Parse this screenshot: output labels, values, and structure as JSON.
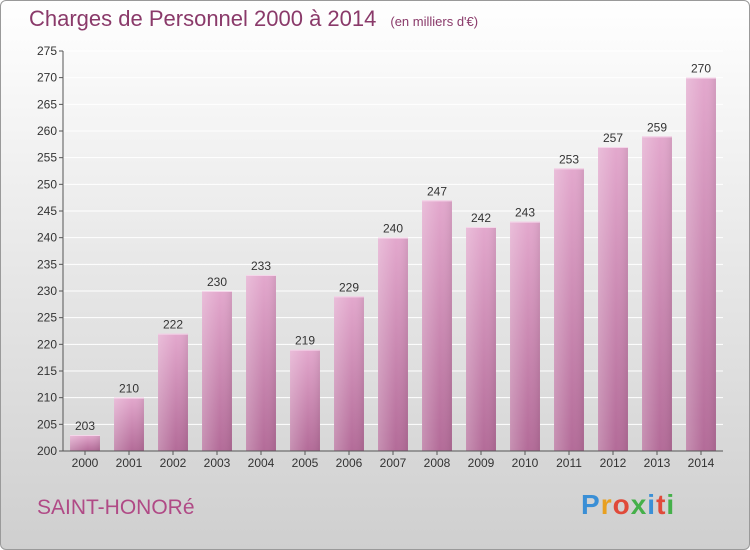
{
  "header": {
    "title": "Charges de Personnel 2000 à 2014",
    "subtitle": "(en milliers d'€)"
  },
  "footer": {
    "commune": "SAINT-HONORé",
    "logo_letters": [
      "P",
      "r",
      "o",
      "x",
      "i",
      "t",
      "i"
    ]
  },
  "colors": {
    "bar_top": "#e3a8cd",
    "bar_bottom": "#b36b98",
    "bar_edge": "#f5d6ea",
    "grid": "#ffffff",
    "axis": "#555555",
    "logo": [
      "#3a8fd6",
      "#e8a020",
      "#e04a3a",
      "#45b04a",
      "#3a8fd6",
      "#e04a3a",
      "#45b04a"
    ]
  },
  "chart_data": {
    "type": "bar",
    "title": "Charges de Personnel 2000 à 2014",
    "subtitle": "(en milliers d'€)",
    "xlabel": "",
    "ylabel": "",
    "categories": [
      "2000",
      "2001",
      "2002",
      "2003",
      "2004",
      "2005",
      "2006",
      "2007",
      "2008",
      "2009",
      "2010",
      "2011",
      "2012",
      "2013",
      "2014"
    ],
    "values": [
      203,
      210,
      222,
      230,
      233,
      219,
      229,
      240,
      247,
      242,
      243,
      253,
      257,
      259,
      270
    ],
    "ylim": [
      200,
      275
    ],
    "yticks": [
      200,
      205,
      210,
      215,
      220,
      225,
      230,
      235,
      240,
      245,
      250,
      255,
      260,
      265,
      270,
      275
    ],
    "grid": true,
    "legend": "none"
  }
}
